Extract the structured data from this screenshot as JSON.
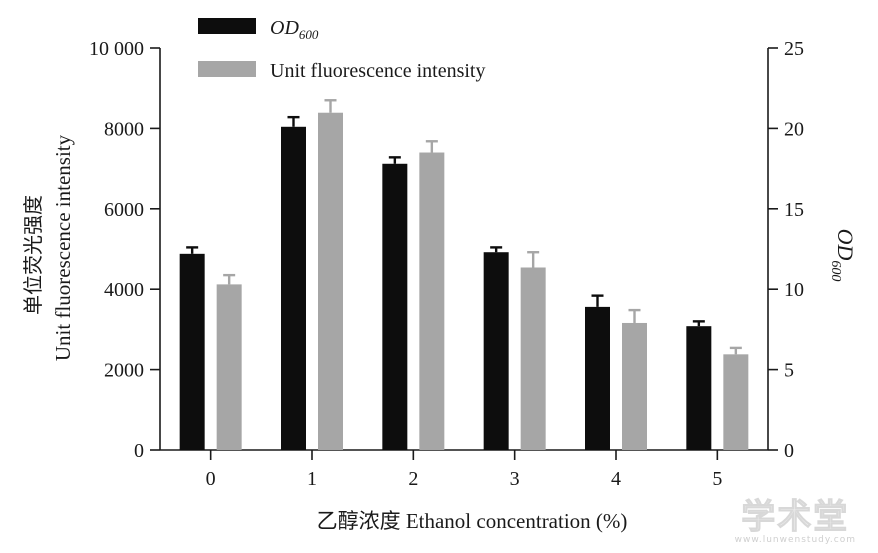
{
  "chart_data": {
    "type": "bar",
    "categories": [
      "0",
      "1",
      "2",
      "3",
      "4",
      "5"
    ],
    "series": [
      {
        "name": "OD600",
        "axis": "right",
        "color": "#0d0d0d",
        "values": [
          12.2,
          20.1,
          17.8,
          12.3,
          8.9,
          7.7
        ],
        "errors": [
          0.4,
          0.6,
          0.4,
          0.3,
          0.7,
          0.3
        ]
      },
      {
        "name": "Unit fluorescence intensity",
        "axis": "left",
        "color": "#a6a6a6",
        "values": [
          4120,
          8390,
          7400,
          4540,
          3160,
          2380
        ],
        "errors": [
          230,
          310,
          280,
          380,
          320,
          160
        ]
      }
    ],
    "xlabel": "乙醇浓度 Ethanol concentration (%)",
    "ylabel_left_cn": "单位荧光强度",
    "ylabel_left_en": "Unit fluorescence intensity",
    "ylabel_right": "OD600",
    "ylim_left": [
      0,
      10000
    ],
    "ylim_right": [
      0,
      25
    ],
    "yticks_left": [
      "0",
      "2000",
      "4000",
      "6000",
      "8000",
      "10 000"
    ],
    "yticks_right": [
      "0",
      "5",
      "10",
      "15",
      "20",
      "25"
    ],
    "legend": {
      "placement": "top-left",
      "items": [
        {
          "label_main": "OD",
          "label_sub": "600",
          "italic": true
        },
        {
          "label_main": "Unit fluorescence intensity",
          "label_sub": "",
          "italic": false
        }
      ]
    },
    "grid": false
  },
  "watermark": {
    "main": "学术堂",
    "sub": "www.lunwenstudy.com"
  }
}
